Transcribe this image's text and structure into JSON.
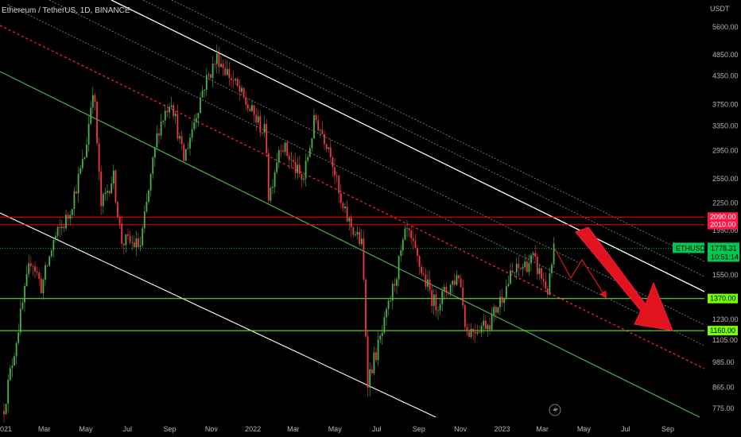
{
  "header": {
    "symbol_title": "Ethereum / TetherUS, 1D, BINANCE"
  },
  "axis": {
    "currency": "USDT",
    "y_ticks": [
      "5600.00",
      "4850.00",
      "4350.00",
      "3750.00",
      "3350.00",
      "2950.00",
      "2550.00",
      "2250.00",
      "1950.00",
      "1550.00",
      "1230.00",
      "1105.00",
      "985.00",
      "865.00",
      "775.00"
    ],
    "x_ticks": [
      "2021",
      "Mar",
      "May",
      "Jul",
      "Sep",
      "Nov",
      "2022",
      "Mar",
      "May",
      "Jul",
      "Sep",
      "Nov",
      "2023",
      "Mar",
      "May",
      "Jul",
      "Sep"
    ]
  },
  "badges": {
    "ticker": "ETHUSDT",
    "price": "1778.31",
    "countdown": "10:51:14",
    "level_2090": "2090.00",
    "level_2010": "2010.00",
    "level_1370": "1370.00",
    "level_1160": "1160.00"
  },
  "colors": {
    "background": "#000000",
    "bull_candle": "#4caf50",
    "bear_candle": "#f23645",
    "resistance": "#ff0000",
    "support": "#76ff03",
    "channel_white": "#e0e0e0",
    "channel_green": "#4caf50",
    "dashed_red": "#ff1744",
    "arrow_red": "#e0131f",
    "price_badge": "#00c853"
  },
  "chart_data": {
    "type": "candlestick",
    "title": "Ethereum / TetherUS, 1D, BINANCE",
    "y_unit": "USDT",
    "y_scale": "log",
    "ylim": [
      740,
      6000
    ],
    "x_range": [
      "2021-01-01",
      "2023-10-15"
    ],
    "series_path": [
      [
        "2021-01-01",
        780
      ],
      [
        "2021-02-10",
        1700
      ],
      [
        "2021-02-25",
        1450
      ],
      [
        "2021-03-15",
        1850
      ],
      [
        "2021-04-05",
        2100
      ],
      [
        "2021-04-30",
        2900
      ],
      [
        "2021-05-12",
        4200
      ],
      [
        "2021-05-23",
        2200
      ],
      [
        "2021-06-10",
        2600
      ],
      [
        "2021-06-22",
        1850
      ],
      [
        "2021-07-20",
        1800
      ],
      [
        "2021-08-15",
        3300
      ],
      [
        "2021-09-03",
        3900
      ],
      [
        "2021-09-21",
        2800
      ],
      [
        "2021-10-20",
        4100
      ],
      [
        "2021-11-10",
        4800
      ],
      [
        "2021-12-04",
        4200
      ],
      [
        "2021-12-20",
        3800
      ],
      [
        "2022-01-20",
        3200
      ],
      [
        "2022-01-24",
        2300
      ],
      [
        "2022-02-10",
        3100
      ],
      [
        "2022-03-15",
        2500
      ],
      [
        "2022-04-02",
        3500
      ],
      [
        "2022-04-25",
        2950
      ],
      [
        "2022-05-10",
        2200
      ],
      [
        "2022-06-10",
        1800
      ],
      [
        "2022-06-18",
        900
      ],
      [
        "2022-07-10",
        1150
      ],
      [
        "2022-08-14",
        1950
      ],
      [
        "2022-09-07",
        1550
      ],
      [
        "2022-09-25",
        1320
      ],
      [
        "2022-10-30",
        1560
      ],
      [
        "2022-11-10",
        1150
      ],
      [
        "2022-12-15",
        1220
      ],
      [
        "2023-01-15",
        1550
      ],
      [
        "2023-02-15",
        1680
      ],
      [
        "2023-03-10",
        1420
      ],
      [
        "2023-03-18",
        1780
      ]
    ],
    "horizontal_levels": [
      {
        "price": 2090,
        "color": "red"
      },
      {
        "price": 2010,
        "color": "red"
      },
      {
        "price": 1370,
        "color": "green"
      },
      {
        "price": 1160,
        "color": "green"
      }
    ],
    "current_price": 1778.31,
    "annotations": [
      "descending channel",
      "big red arrow pointing down toward 1160"
    ]
  }
}
